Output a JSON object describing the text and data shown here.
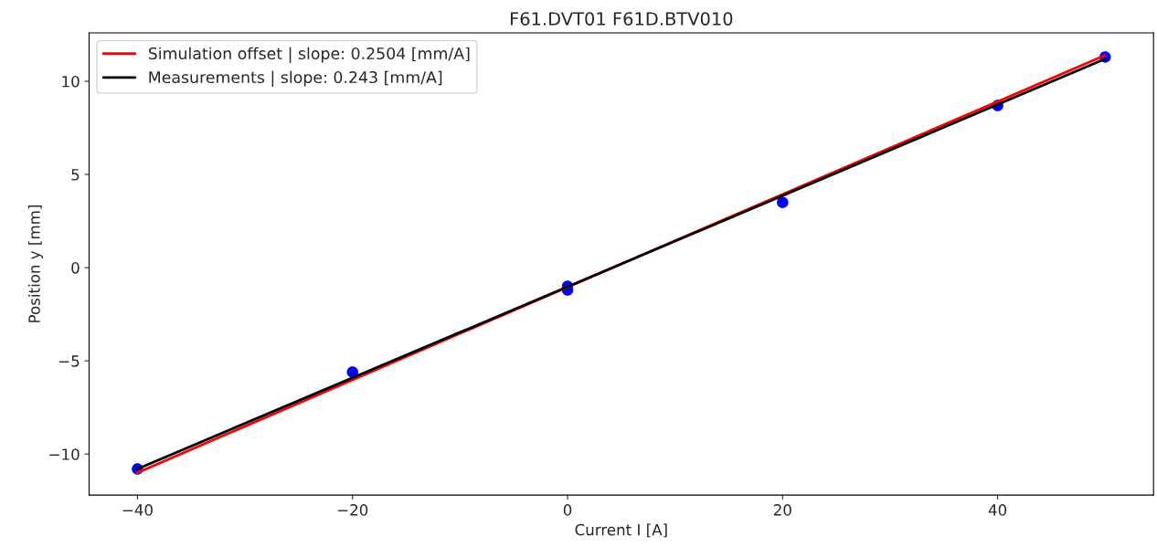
{
  "chart_data": {
    "type": "scatter",
    "title": "F61.DVT01 F61D.BTV010",
    "xlabel": "Current I [A]",
    "ylabel": "Position y [mm]",
    "xlim": [
      -44.5,
      54.5
    ],
    "xticks": [
      {
        "value": -40,
        "label": "−40"
      },
      {
        "value": -20,
        "label": "−20"
      },
      0,
      20,
      40
    ],
    "ylim": [
      -12.2,
      12.6
    ],
    "yticks": [
      {
        "value": -10,
        "label": "−10"
      },
      {
        "value": -5,
        "label": "−5"
      },
      0,
      5,
      10
    ],
    "grid": false,
    "legend": "top left",
    "series": [
      {
        "color": "#0000ff",
        "marker": "circle",
        "x": [
          -40,
          -20,
          0,
          0,
          20,
          40,
          50
        ],
        "values": [
          -10.8,
          -5.6,
          -1.0,
          -1.2,
          3.5,
          8.7,
          11.3
        ]
      },
      {
        "type": "line",
        "name": "Simulation offset | slope: 0.2504 [mm/A]",
        "color": "#ff0000",
        "marker": "none",
        "x": [
          -40,
          50
        ],
        "values": [
          -11.0,
          11.4
        ]
      },
      {
        "type": "line",
        "name": "Measurements | slope: 0.243 [mm/A]",
        "color": "#000000",
        "marker": "none",
        "x": [
          -40,
          50
        ],
        "values": [
          -10.8,
          11.2
        ]
      }
    ]
  }
}
